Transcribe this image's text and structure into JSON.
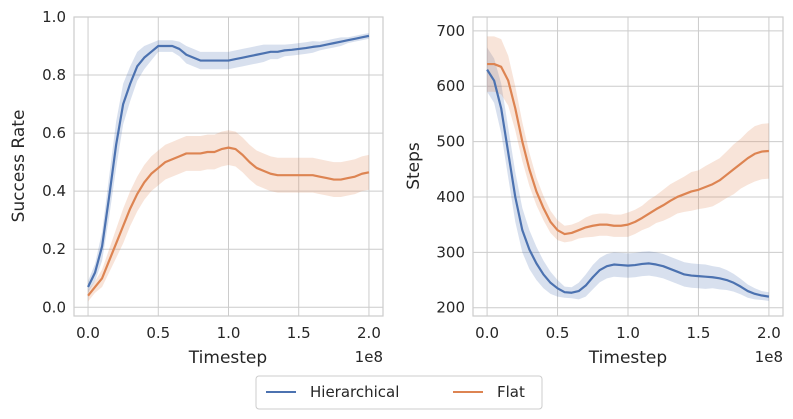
{
  "chart_data": [
    {
      "type": "line",
      "xlabel": "Timestep",
      "ylabel": "Success Rate",
      "x_offset_label": "1e8",
      "xlim": [
        -0.1,
        2.1
      ],
      "ylim": [
        -0.03,
        1.0
      ],
      "grid": true,
      "xticks": [
        0,
        0.5,
        1,
        1.5,
        2
      ],
      "xtick_labels": [
        "0.0",
        "0.5",
        "1.0",
        "1.5",
        "2.0"
      ],
      "yticks": [
        0,
        0.2,
        0.4,
        0.6,
        0.8,
        1.0
      ],
      "ytick_labels": [
        "0.0",
        "0.2",
        "0.4",
        "0.6",
        "0.8",
        "1.0"
      ],
      "x": [
        0,
        0.05,
        0.1,
        0.15,
        0.2,
        0.25,
        0.3,
        0.35,
        0.4,
        0.45,
        0.5,
        0.55,
        0.6,
        0.65,
        0.7,
        0.75,
        0.8,
        0.85,
        0.9,
        0.95,
        1.0,
        1.05,
        1.1,
        1.15,
        1.2,
        1.25,
        1.3,
        1.35,
        1.4,
        1.45,
        1.5,
        1.55,
        1.6,
        1.65,
        1.7,
        1.75,
        1.8,
        1.85,
        1.9,
        1.95,
        2.0
      ],
      "series": [
        {
          "name": "Hierarchical",
          "color": "#4c72b0",
          "values": [
            0.07,
            0.12,
            0.21,
            0.38,
            0.56,
            0.7,
            0.77,
            0.83,
            0.86,
            0.88,
            0.9,
            0.9,
            0.9,
            0.89,
            0.87,
            0.86,
            0.85,
            0.85,
            0.85,
            0.85,
            0.85,
            0.855,
            0.86,
            0.865,
            0.87,
            0.875,
            0.88,
            0.88,
            0.885,
            0.887,
            0.89,
            0.893,
            0.897,
            0.9,
            0.905,
            0.91,
            0.915,
            0.92,
            0.925,
            0.93,
            0.935
          ],
          "band": [
            0.02,
            0.03,
            0.05,
            0.07,
            0.08,
            0.07,
            0.06,
            0.05,
            0.04,
            0.03,
            0.02,
            0.02,
            0.02,
            0.025,
            0.03,
            0.03,
            0.03,
            0.03,
            0.03,
            0.03,
            0.03,
            0.03,
            0.03,
            0.03,
            0.03,
            0.03,
            0.025,
            0.025,
            0.02,
            0.02,
            0.02,
            0.02,
            0.02,
            0.015,
            0.015,
            0.015,
            0.015,
            0.01,
            0.01,
            0.01,
            0.01
          ]
        },
        {
          "name": "Flat",
          "color": "#dd8452",
          "values": [
            0.04,
            0.07,
            0.1,
            0.16,
            0.22,
            0.28,
            0.34,
            0.39,
            0.43,
            0.46,
            0.48,
            0.5,
            0.51,
            0.52,
            0.53,
            0.53,
            0.53,
            0.535,
            0.535,
            0.545,
            0.55,
            0.545,
            0.525,
            0.5,
            0.48,
            0.47,
            0.46,
            0.455,
            0.455,
            0.455,
            0.455,
            0.455,
            0.455,
            0.45,
            0.445,
            0.44,
            0.44,
            0.445,
            0.45,
            0.46,
            0.465
          ],
          "band": [
            0.02,
            0.02,
            0.03,
            0.04,
            0.05,
            0.06,
            0.06,
            0.06,
            0.06,
            0.06,
            0.06,
            0.06,
            0.06,
            0.06,
            0.06,
            0.06,
            0.06,
            0.06,
            0.06,
            0.06,
            0.06,
            0.06,
            0.06,
            0.06,
            0.06,
            0.06,
            0.06,
            0.06,
            0.06,
            0.06,
            0.06,
            0.06,
            0.06,
            0.06,
            0.06,
            0.06,
            0.06,
            0.06,
            0.06,
            0.06,
            0.06
          ]
        }
      ]
    },
    {
      "type": "line",
      "xlabel": "Timestep",
      "ylabel": "Steps",
      "x_offset_label": "1e8",
      "xlim": [
        -0.1,
        2.1
      ],
      "ylim": [
        185,
        725
      ],
      "grid": true,
      "xticks": [
        0,
        0.5,
        1,
        1.5,
        2
      ],
      "xtick_labels": [
        "0.0",
        "0.5",
        "1.0",
        "1.5",
        "2.0"
      ],
      "yticks": [
        200,
        300,
        400,
        500,
        600,
        700
      ],
      "ytick_labels": [
        "200",
        "300",
        "400",
        "500",
        "600",
        "700"
      ],
      "x": [
        0,
        0.05,
        0.1,
        0.15,
        0.2,
        0.25,
        0.3,
        0.35,
        0.4,
        0.45,
        0.5,
        0.55,
        0.6,
        0.65,
        0.7,
        0.75,
        0.8,
        0.85,
        0.9,
        0.95,
        1.0,
        1.05,
        1.1,
        1.15,
        1.2,
        1.25,
        1.3,
        1.35,
        1.4,
        1.45,
        1.5,
        1.55,
        1.6,
        1.65,
        1.7,
        1.75,
        1.8,
        1.85,
        1.9,
        1.95,
        2.0
      ],
      "series": [
        {
          "name": "Hierarchical",
          "color": "#4c72b0",
          "values": [
            630,
            610,
            560,
            480,
            400,
            340,
            305,
            280,
            260,
            245,
            235,
            228,
            227,
            230,
            240,
            255,
            268,
            275,
            278,
            277,
            276,
            277,
            279,
            280,
            278,
            275,
            270,
            265,
            260,
            258,
            257,
            256,
            255,
            253,
            250,
            245,
            238,
            230,
            225,
            222,
            220
          ],
          "band": [
            40,
            40,
            45,
            45,
            45,
            40,
            35,
            30,
            25,
            20,
            15,
            10,
            10,
            15,
            20,
            22,
            22,
            22,
            22,
            22,
            22,
            22,
            22,
            22,
            22,
            22,
            22,
            22,
            22,
            22,
            22,
            22,
            20,
            20,
            18,
            16,
            14,
            12,
            10,
            8,
            8
          ]
        },
        {
          "name": "Flat",
          "color": "#dd8452",
          "values": [
            640,
            640,
            635,
            610,
            560,
            500,
            450,
            410,
            380,
            355,
            340,
            333,
            335,
            340,
            345,
            348,
            350,
            350,
            348,
            348,
            350,
            355,
            362,
            370,
            378,
            385,
            393,
            400,
            405,
            410,
            413,
            418,
            423,
            430,
            440,
            450,
            460,
            470,
            478,
            482,
            483
          ],
          "band": [
            50,
            50,
            50,
            45,
            40,
            35,
            30,
            25,
            22,
            20,
            18,
            15,
            15,
            15,
            18,
            20,
            20,
            20,
            20,
            20,
            22,
            22,
            22,
            25,
            25,
            28,
            30,
            30,
            32,
            35,
            35,
            38,
            40,
            40,
            42,
            45,
            45,
            48,
            50,
            50,
            50
          ]
        }
      ]
    }
  ],
  "legend": {
    "entries": [
      {
        "name": "Hierarchical",
        "color": "#4c72b0"
      },
      {
        "name": "Flat",
        "color": "#dd8452"
      }
    ]
  }
}
